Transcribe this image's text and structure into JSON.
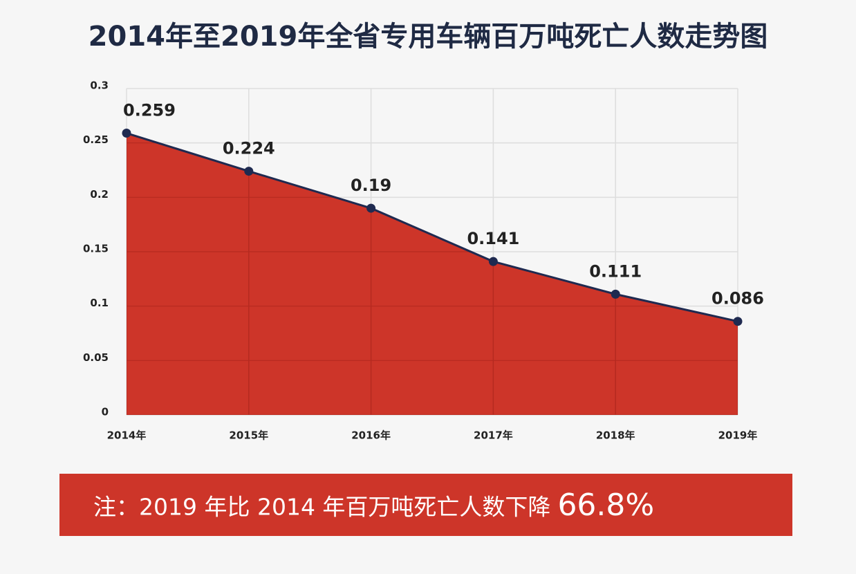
{
  "chart_data": {
    "type": "area",
    "title": "2014年至2019年全省专用车辆百万吨死亡人数走势图",
    "categories": [
      "2014年",
      "2015年",
      "2016年",
      "2017年",
      "2018年",
      "2019年"
    ],
    "series": [
      {
        "name": "百万吨死亡人数",
        "color": "#cd3529",
        "line_color": "#1f2a50",
        "values": [
          0.259,
          0.224,
          0.19,
          0.141,
          0.111,
          0.086
        ]
      }
    ],
    "ylim": [
      0,
      0.3
    ],
    "yticks": [
      0,
      0.05,
      0.1,
      0.15,
      0.2,
      0.25,
      0.3
    ],
    "grid": true,
    "annotations": [
      "注：2019 年比 2014 年百万吨死亡人数下降",
      "66.8%"
    ]
  }
}
